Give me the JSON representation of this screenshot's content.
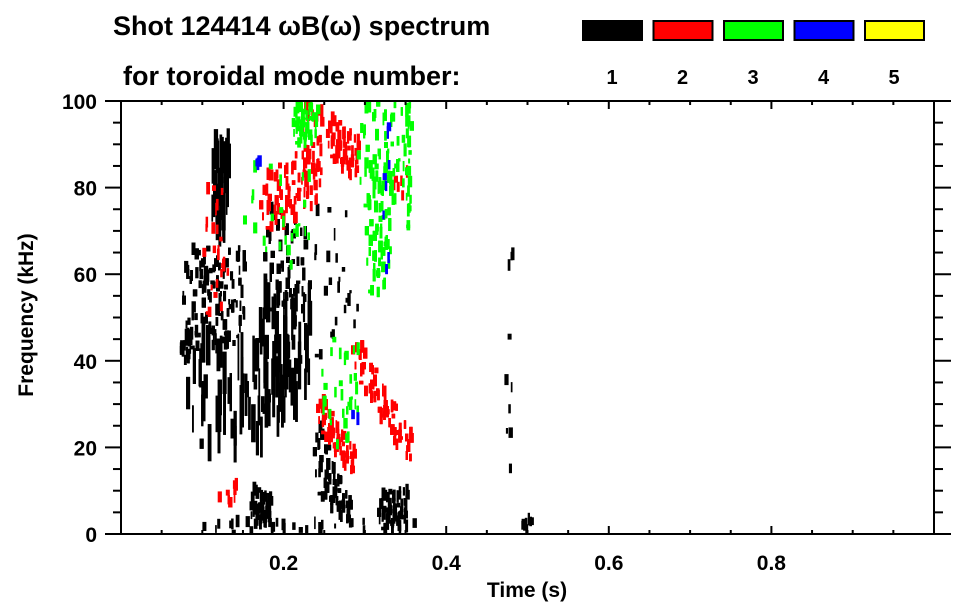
{
  "chart_data": {
    "type": "heatmap",
    "title_line1": "Shot 124414 ωB(ω) spectrum",
    "title_line2": "for toroidal mode number:",
    "xlabel": "Time (s)",
    "ylabel": "Frequency (kHz)",
    "xlim": [
      0,
      1.0
    ],
    "ylim": [
      0,
      100
    ],
    "xticks": [
      0.2,
      0.4,
      0.6,
      0.8
    ],
    "xtick_labels": [
      "0.2",
      "0.4",
      "0.6",
      "0.8"
    ],
    "x_minor_step": 0.05,
    "yticks": [
      0,
      20,
      40,
      60,
      80,
      100
    ],
    "ytick_labels": [
      "0",
      "20",
      "40",
      "60",
      "80",
      "100"
    ],
    "y_minor_step": 5,
    "legend": [
      {
        "label": "1",
        "color": "#000000"
      },
      {
        "label": "2",
        "color": "#ff0000"
      },
      {
        "label": "3",
        "color": "#00ff00"
      },
      {
        "label": "4",
        "color": "#0000ff"
      },
      {
        "label": "5",
        "color": "#ffff00"
      }
    ],
    "series": [
      {
        "mode": "1",
        "color": "#000000",
        "regions": [
          {
            "t": [
              0.075,
              0.15
            ],
            "f_start": [
              42,
              66
            ],
            "f_end": [
              44,
              66
            ],
            "n": 260
          },
          {
            "t": [
              0.07,
              0.085
            ],
            "f_start": [
              40,
              47
            ],
            "f_end": [
              40,
              47
            ],
            "n": 20
          },
          {
            "t": [
              0.08,
              0.2
            ],
            "f_start": [
              20,
              45
            ],
            "f_end": [
              20,
              45
            ],
            "n": 120,
            "streak": true
          },
          {
            "t": [
              0.175,
              0.225
            ],
            "f_start": [
              52,
              76
            ],
            "f_end": [
              45,
              72
            ],
            "n": 260
          },
          {
            "t": [
              0.165,
              0.23
            ],
            "f_start": [
              28,
              55
            ],
            "f_end": [
              28,
              55
            ],
            "n": 80,
            "streak": true
          },
          {
            "t": [
              0.158,
              0.182
            ],
            "f_start": [
              2,
              11
            ],
            "f_end": [
              2,
              9
            ],
            "n": 50
          },
          {
            "t": [
              0.236,
              0.28
            ],
            "f_start": [
              10,
              28
            ],
            "f_end": [
              1,
              8
            ],
            "n": 170
          },
          {
            "t": [
              0.315,
              0.35
            ],
            "f_start": [
              1,
              9
            ],
            "f_end": [
              1,
              11
            ],
            "n": 70
          },
          {
            "t": [
              0.11,
              0.13
            ],
            "f_start": [
              70,
              90
            ],
            "f_end": [
              70,
              90
            ],
            "n": 30,
            "streak": true
          },
          {
            "t": [
              0.23,
              0.29
            ],
            "f_start": [
              40,
              75
            ],
            "f_end": [
              40,
              75
            ],
            "n": 25
          },
          {
            "t": [
              0.47,
              0.48
            ],
            "f_start": [
              10,
              70
            ],
            "f_end": [
              10,
              70
            ],
            "n": 10
          },
          {
            "t": [
              0.49,
              0.505
            ],
            "f_start": [
              1,
              4
            ],
            "f_end": [
              1,
              4
            ],
            "n": 8
          },
          {
            "t": [
              0.1,
              0.36
            ],
            "f_start": [
              0.5,
              3
            ],
            "f_end": [
              0.5,
              3
            ],
            "n": 30
          }
        ]
      },
      {
        "mode": "2",
        "color": "#ff0000",
        "regions": [
          {
            "t": [
              0.17,
              0.228
            ],
            "f_start": [
              70,
              82
            ],
            "f_end": [
              72,
              90
            ],
            "n": 200
          },
          {
            "t": [
              0.252,
              0.29
            ],
            "f_start": [
              88,
              97
            ],
            "f_end": [
              80,
              92
            ],
            "n": 70
          },
          {
            "t": [
              0.283,
              0.355
            ],
            "f_start": [
              38,
              47
            ],
            "f_end": [
              14,
              24
            ],
            "n": 200
          },
          {
            "t": [
              0.24,
              0.285
            ],
            "f_start": [
              25,
              33
            ],
            "f_end": [
              12,
              20
            ],
            "n": 80
          },
          {
            "t": [
              0.22,
              0.245
            ],
            "f_start": [
              75,
              100
            ],
            "f_end": [
              75,
              100
            ],
            "n": 40
          },
          {
            "t": [
              0.1,
              0.13
            ],
            "f_start": [
              50,
              80
            ],
            "f_end": [
              50,
              80
            ],
            "n": 25
          },
          {
            "t": [
              0.115,
              0.14
            ],
            "f_start": [
              6,
              12
            ],
            "f_end": [
              6,
              12
            ],
            "n": 8
          },
          {
            "t": [
              0.33,
              0.36
            ],
            "f_start": [
              78,
              85
            ],
            "f_end": [
              78,
              85
            ],
            "n": 6
          }
        ]
      },
      {
        "mode": "3",
        "color": "#00ff00",
        "regions": [
          {
            "t": [
              0.3,
              0.33
            ],
            "f_start": [
              55,
              85
            ],
            "f_end": [
              55,
              85
            ],
            "n": 200
          },
          {
            "t": [
              0.29,
              0.35
            ],
            "f_start": [
              75,
              100
            ],
            "f_end": [
              75,
              100
            ],
            "n": 120
          },
          {
            "t": [
              0.21,
              0.24
            ],
            "f_start": [
              90,
              100
            ],
            "f_end": [
              90,
              100
            ],
            "n": 40
          },
          {
            "t": [
              0.24,
              0.29
            ],
            "f_start": [
              20,
              45
            ],
            "f_end": [
              20,
              45
            ],
            "n": 30
          },
          {
            "t": [
              0.35,
              0.355
            ],
            "f_start": [
              70,
              100
            ],
            "f_end": [
              70,
              100
            ],
            "n": 20
          },
          {
            "t": [
              0.15,
              0.23
            ],
            "f_start": [
              60,
              85
            ],
            "f_end": [
              60,
              85
            ],
            "n": 25
          }
        ]
      },
      {
        "mode": "4",
        "color": "#0000ff",
        "regions": [
          {
            "t": [
              0.32,
              0.33
            ],
            "f_start": [
              60,
              100
            ],
            "f_end": [
              60,
              100
            ],
            "n": 8
          },
          {
            "t": [
              0.28,
              0.29
            ],
            "f_start": [
              25,
              28
            ],
            "f_end": [
              25,
              28
            ],
            "n": 3
          },
          {
            "t": [
              0.165,
              0.17
            ],
            "f_start": [
              85,
              88
            ],
            "f_end": [
              85,
              88
            ],
            "n": 3
          }
        ]
      },
      {
        "mode": "5",
        "color": "#ffff00",
        "regions": []
      }
    ]
  }
}
